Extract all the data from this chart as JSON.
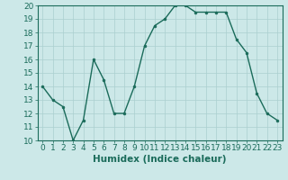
{
  "x": [
    0,
    1,
    2,
    3,
    4,
    5,
    6,
    7,
    8,
    9,
    10,
    11,
    12,
    13,
    14,
    15,
    16,
    17,
    18,
    19,
    20,
    21,
    22,
    23
  ],
  "y": [
    14,
    13,
    12.5,
    10,
    11.5,
    16,
    14.5,
    12,
    12,
    14,
    17,
    18.5,
    19,
    20,
    20,
    19.5,
    19.5,
    19.5,
    19.5,
    17.5,
    16.5,
    13.5,
    12,
    11.5
  ],
  "line_color": "#1a6b5a",
  "marker_color": "#1a6b5a",
  "bg_color": "#cce8e8",
  "grid_color": "#aacfcf",
  "xlabel": "Humidex (Indice chaleur)",
  "ylim": [
    10,
    20
  ],
  "xlim_min": -0.5,
  "xlim_max": 23.5,
  "yticks": [
    10,
    11,
    12,
    13,
    14,
    15,
    16,
    17,
    18,
    19,
    20
  ],
  "xticks": [
    0,
    1,
    2,
    3,
    4,
    5,
    6,
    7,
    8,
    9,
    10,
    11,
    12,
    13,
    14,
    15,
    16,
    17,
    18,
    19,
    20,
    21,
    22,
    23
  ],
  "tick_color": "#1a6b5a",
  "xlabel_fontsize": 7.5,
  "tick_fontsize": 6.5,
  "linewidth": 1.0,
  "markersize": 2.0
}
